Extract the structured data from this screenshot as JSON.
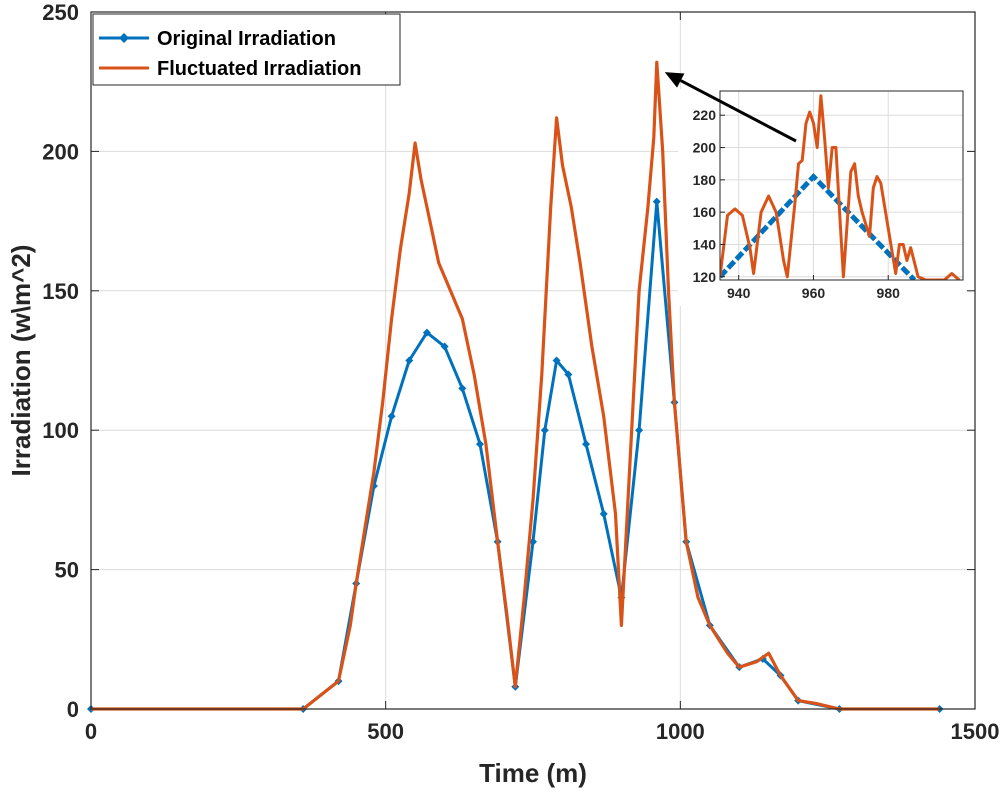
{
  "chart_data": {
    "type": "line",
    "title": "",
    "xlabel": "Time (m)",
    "ylabel": "Irradiation (w\\m^2)",
    "xlim": [
      0,
      1500
    ],
    "ylim": [
      0,
      250
    ],
    "xticks": [
      0,
      500,
      1000,
      1500
    ],
    "yticks": [
      0,
      50,
      100,
      150,
      200,
      250
    ],
    "grid": true,
    "legend_position": "top-left",
    "series": [
      {
        "name": "Original Irradiation",
        "color": "#0072BD",
        "marker": "diamond",
        "points": [
          [
            0,
            0
          ],
          [
            360,
            0
          ],
          [
            420,
            10
          ],
          [
            450,
            45
          ],
          [
            480,
            80
          ],
          [
            510,
            105
          ],
          [
            540,
            125
          ],
          [
            570,
            135
          ],
          [
            600,
            130
          ],
          [
            630,
            115
          ],
          [
            660,
            95
          ],
          [
            690,
            60
          ],
          [
            720,
            8
          ],
          [
            750,
            60
          ],
          [
            770,
            100
          ],
          [
            790,
            125
          ],
          [
            810,
            120
          ],
          [
            840,
            95
          ],
          [
            870,
            70
          ],
          [
            900,
            40
          ],
          [
            930,
            100
          ],
          [
            960,
            182
          ],
          [
            990,
            110
          ],
          [
            1010,
            60
          ],
          [
            1050,
            30
          ],
          [
            1100,
            15
          ],
          [
            1140,
            18
          ],
          [
            1170,
            12
          ],
          [
            1200,
            3
          ],
          [
            1270,
            0
          ],
          [
            1440,
            0
          ]
        ]
      },
      {
        "name": "Fluctuated Irradiation",
        "color": "#D95319",
        "points": [
          [
            0,
            0
          ],
          [
            360,
            0
          ],
          [
            420,
            10
          ],
          [
            440,
            30
          ],
          [
            450,
            45
          ],
          [
            465,
            65
          ],
          [
            480,
            85
          ],
          [
            495,
            110
          ],
          [
            510,
            140
          ],
          [
            525,
            165
          ],
          [
            540,
            185
          ],
          [
            550,
            203
          ],
          [
            560,
            190
          ],
          [
            575,
            175
          ],
          [
            590,
            160
          ],
          [
            610,
            150
          ],
          [
            630,
            140
          ],
          [
            650,
            120
          ],
          [
            670,
            95
          ],
          [
            690,
            60
          ],
          [
            705,
            35
          ],
          [
            720,
            8
          ],
          [
            735,
            40
          ],
          [
            750,
            75
          ],
          [
            765,
            120
          ],
          [
            780,
            180
          ],
          [
            790,
            212
          ],
          [
            800,
            195
          ],
          [
            815,
            180
          ],
          [
            830,
            160
          ],
          [
            850,
            130
          ],
          [
            870,
            105
          ],
          [
            890,
            70
          ],
          [
            900,
            30
          ],
          [
            915,
            90
          ],
          [
            930,
            150
          ],
          [
            945,
            180
          ],
          [
            955,
            205
          ],
          [
            960,
            232
          ],
          [
            970,
            200
          ],
          [
            980,
            150
          ],
          [
            990,
            110
          ],
          [
            1010,
            60
          ],
          [
            1030,
            40
          ],
          [
            1050,
            30
          ],
          [
            1080,
            20
          ],
          [
            1100,
            15
          ],
          [
            1130,
            17
          ],
          [
            1150,
            20
          ],
          [
            1170,
            12
          ],
          [
            1200,
            3
          ],
          [
            1230,
            2
          ],
          [
            1270,
            0
          ],
          [
            1440,
            0
          ]
        ]
      }
    ],
    "inset": {
      "xlim": [
        935,
        1000
      ],
      "ylim": [
        118,
        235
      ],
      "xticks": [
        940,
        960,
        980
      ],
      "yticks": [
        120,
        140,
        160,
        180,
        200,
        220
      ],
      "original_points": [
        [
          935,
          120
        ],
        [
          960,
          182
        ],
        [
          987,
          118
        ]
      ],
      "fluctuated_points": [
        [
          935,
          120
        ],
        [
          937,
          158
        ],
        [
          939,
          162
        ],
        [
          941,
          158
        ],
        [
          943,
          138
        ],
        [
          944,
          122
        ],
        [
          946,
          160
        ],
        [
          948,
          170
        ],
        [
          950,
          160
        ],
        [
          952,
          130
        ],
        [
          953,
          120
        ],
        [
          955,
          165
        ],
        [
          956,
          190
        ],
        [
          957,
          192
        ],
        [
          958,
          215
        ],
        [
          959,
          222
        ],
        [
          960,
          215
        ],
        [
          961,
          200
        ],
        [
          962,
          232
        ],
        [
          963,
          205
        ],
        [
          964,
          175
        ],
        [
          965,
          200
        ],
        [
          966,
          200
        ],
        [
          967,
          160
        ],
        [
          968,
          120
        ],
        [
          970,
          185
        ],
        [
          971,
          190
        ],
        [
          972,
          170
        ],
        [
          973,
          160
        ],
        [
          975,
          145
        ],
        [
          976,
          175
        ],
        [
          977,
          182
        ],
        [
          978,
          178
        ],
        [
          980,
          150
        ],
        [
          982,
          122
        ],
        [
          983,
          140
        ],
        [
          984,
          140
        ],
        [
          985,
          130
        ],
        [
          986,
          138
        ],
        [
          988,
          120
        ],
        [
          990,
          118
        ],
        [
          995,
          118
        ],
        [
          997,
          122
        ],
        [
          999,
          118
        ]
      ]
    },
    "annotation": {
      "label": "",
      "target": [
        960,
        232
      ],
      "points_to": "inset peak"
    }
  }
}
